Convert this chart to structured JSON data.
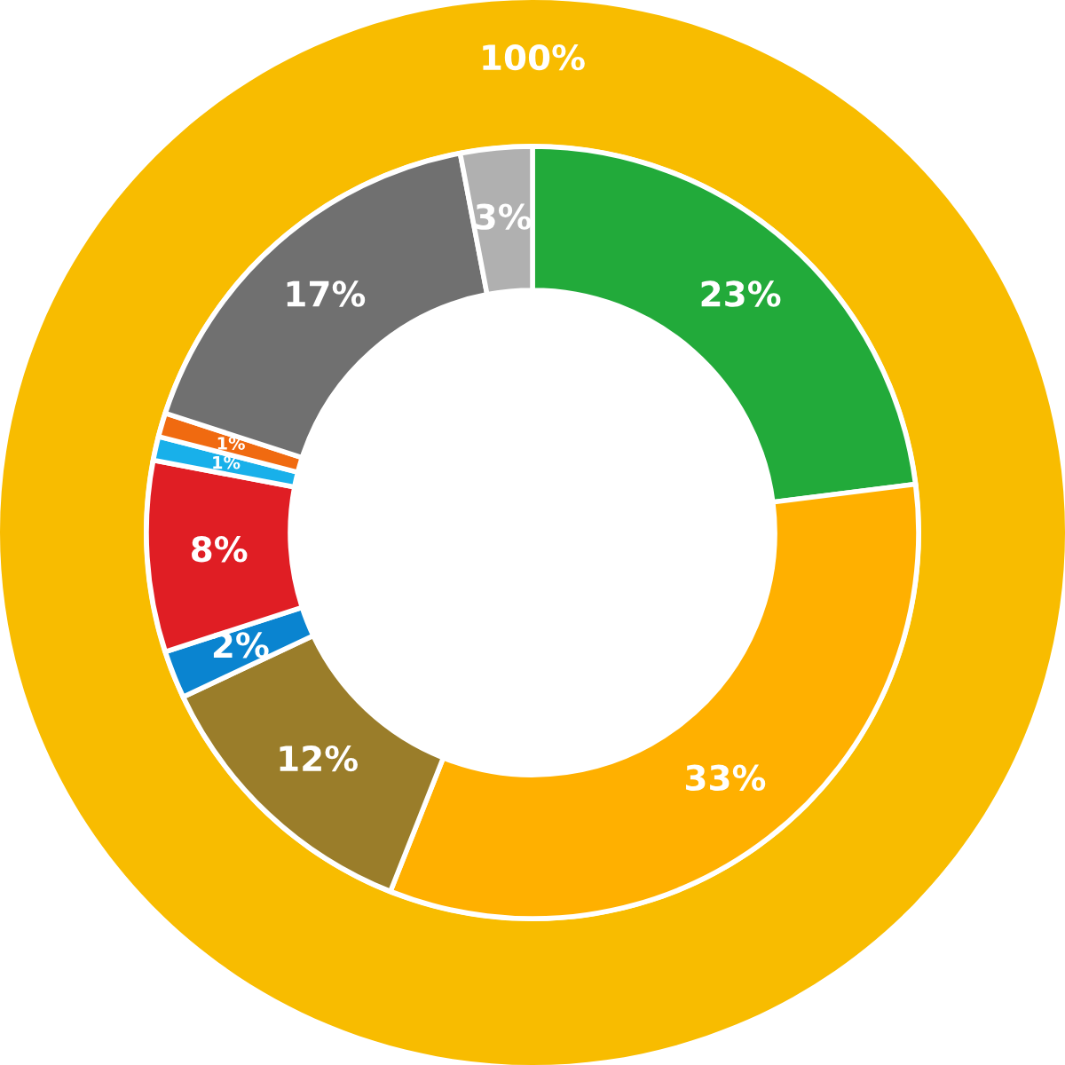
{
  "chart_data": {
    "type": "donut",
    "categories": [
      null,
      null,
      null,
      null,
      null,
      null,
      null,
      null,
      null
    ],
    "series": [
      {
        "values": [
          100,
          null,
          null,
          null,
          null,
          null,
          null,
          null,
          null
        ],
        "value_labels": [
          "100%",
          null,
          null,
          null,
          null,
          null,
          null,
          null,
          null
        ],
        "colors": [
          "#f8bc00",
          null,
          null,
          null,
          null,
          null,
          null,
          null,
          null
        ]
      },
      {
        "values": [
          23,
          33,
          12,
          2,
          8,
          1,
          1,
          17,
          3
        ],
        "value_labels": [
          "23%",
          "33%",
          "12%",
          "2%",
          "8%",
          "1%",
          "1%",
          "17%",
          "3%"
        ],
        "colors": [
          "#22aa3a",
          "#ffb000",
          "#9a7d2a",
          "#0a84d0",
          "#e01e24",
          "#18b0ea",
          "#f06a10",
          "#707070",
          "#b0b0b0"
        ]
      }
    ]
  }
}
